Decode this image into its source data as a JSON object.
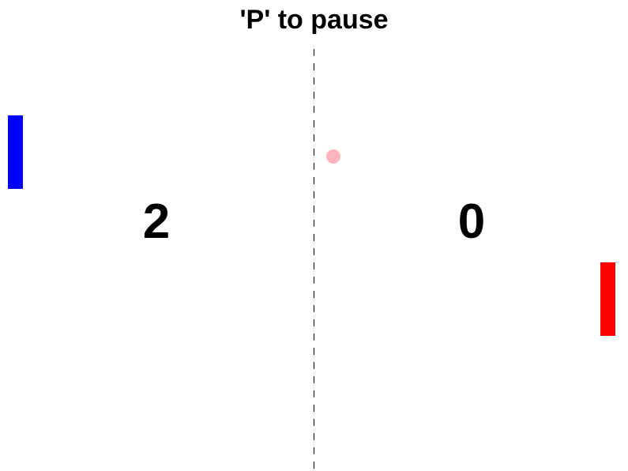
{
  "hud": {
    "pause_hint": "'P' to pause"
  },
  "scores": {
    "left": "2",
    "right": "0"
  },
  "colors": {
    "left_paddle": "#0000ff",
    "right_paddle": "#ff0000",
    "ball": "#ffb3ba",
    "center_line": "#000000",
    "background": "#ffffff"
  }
}
